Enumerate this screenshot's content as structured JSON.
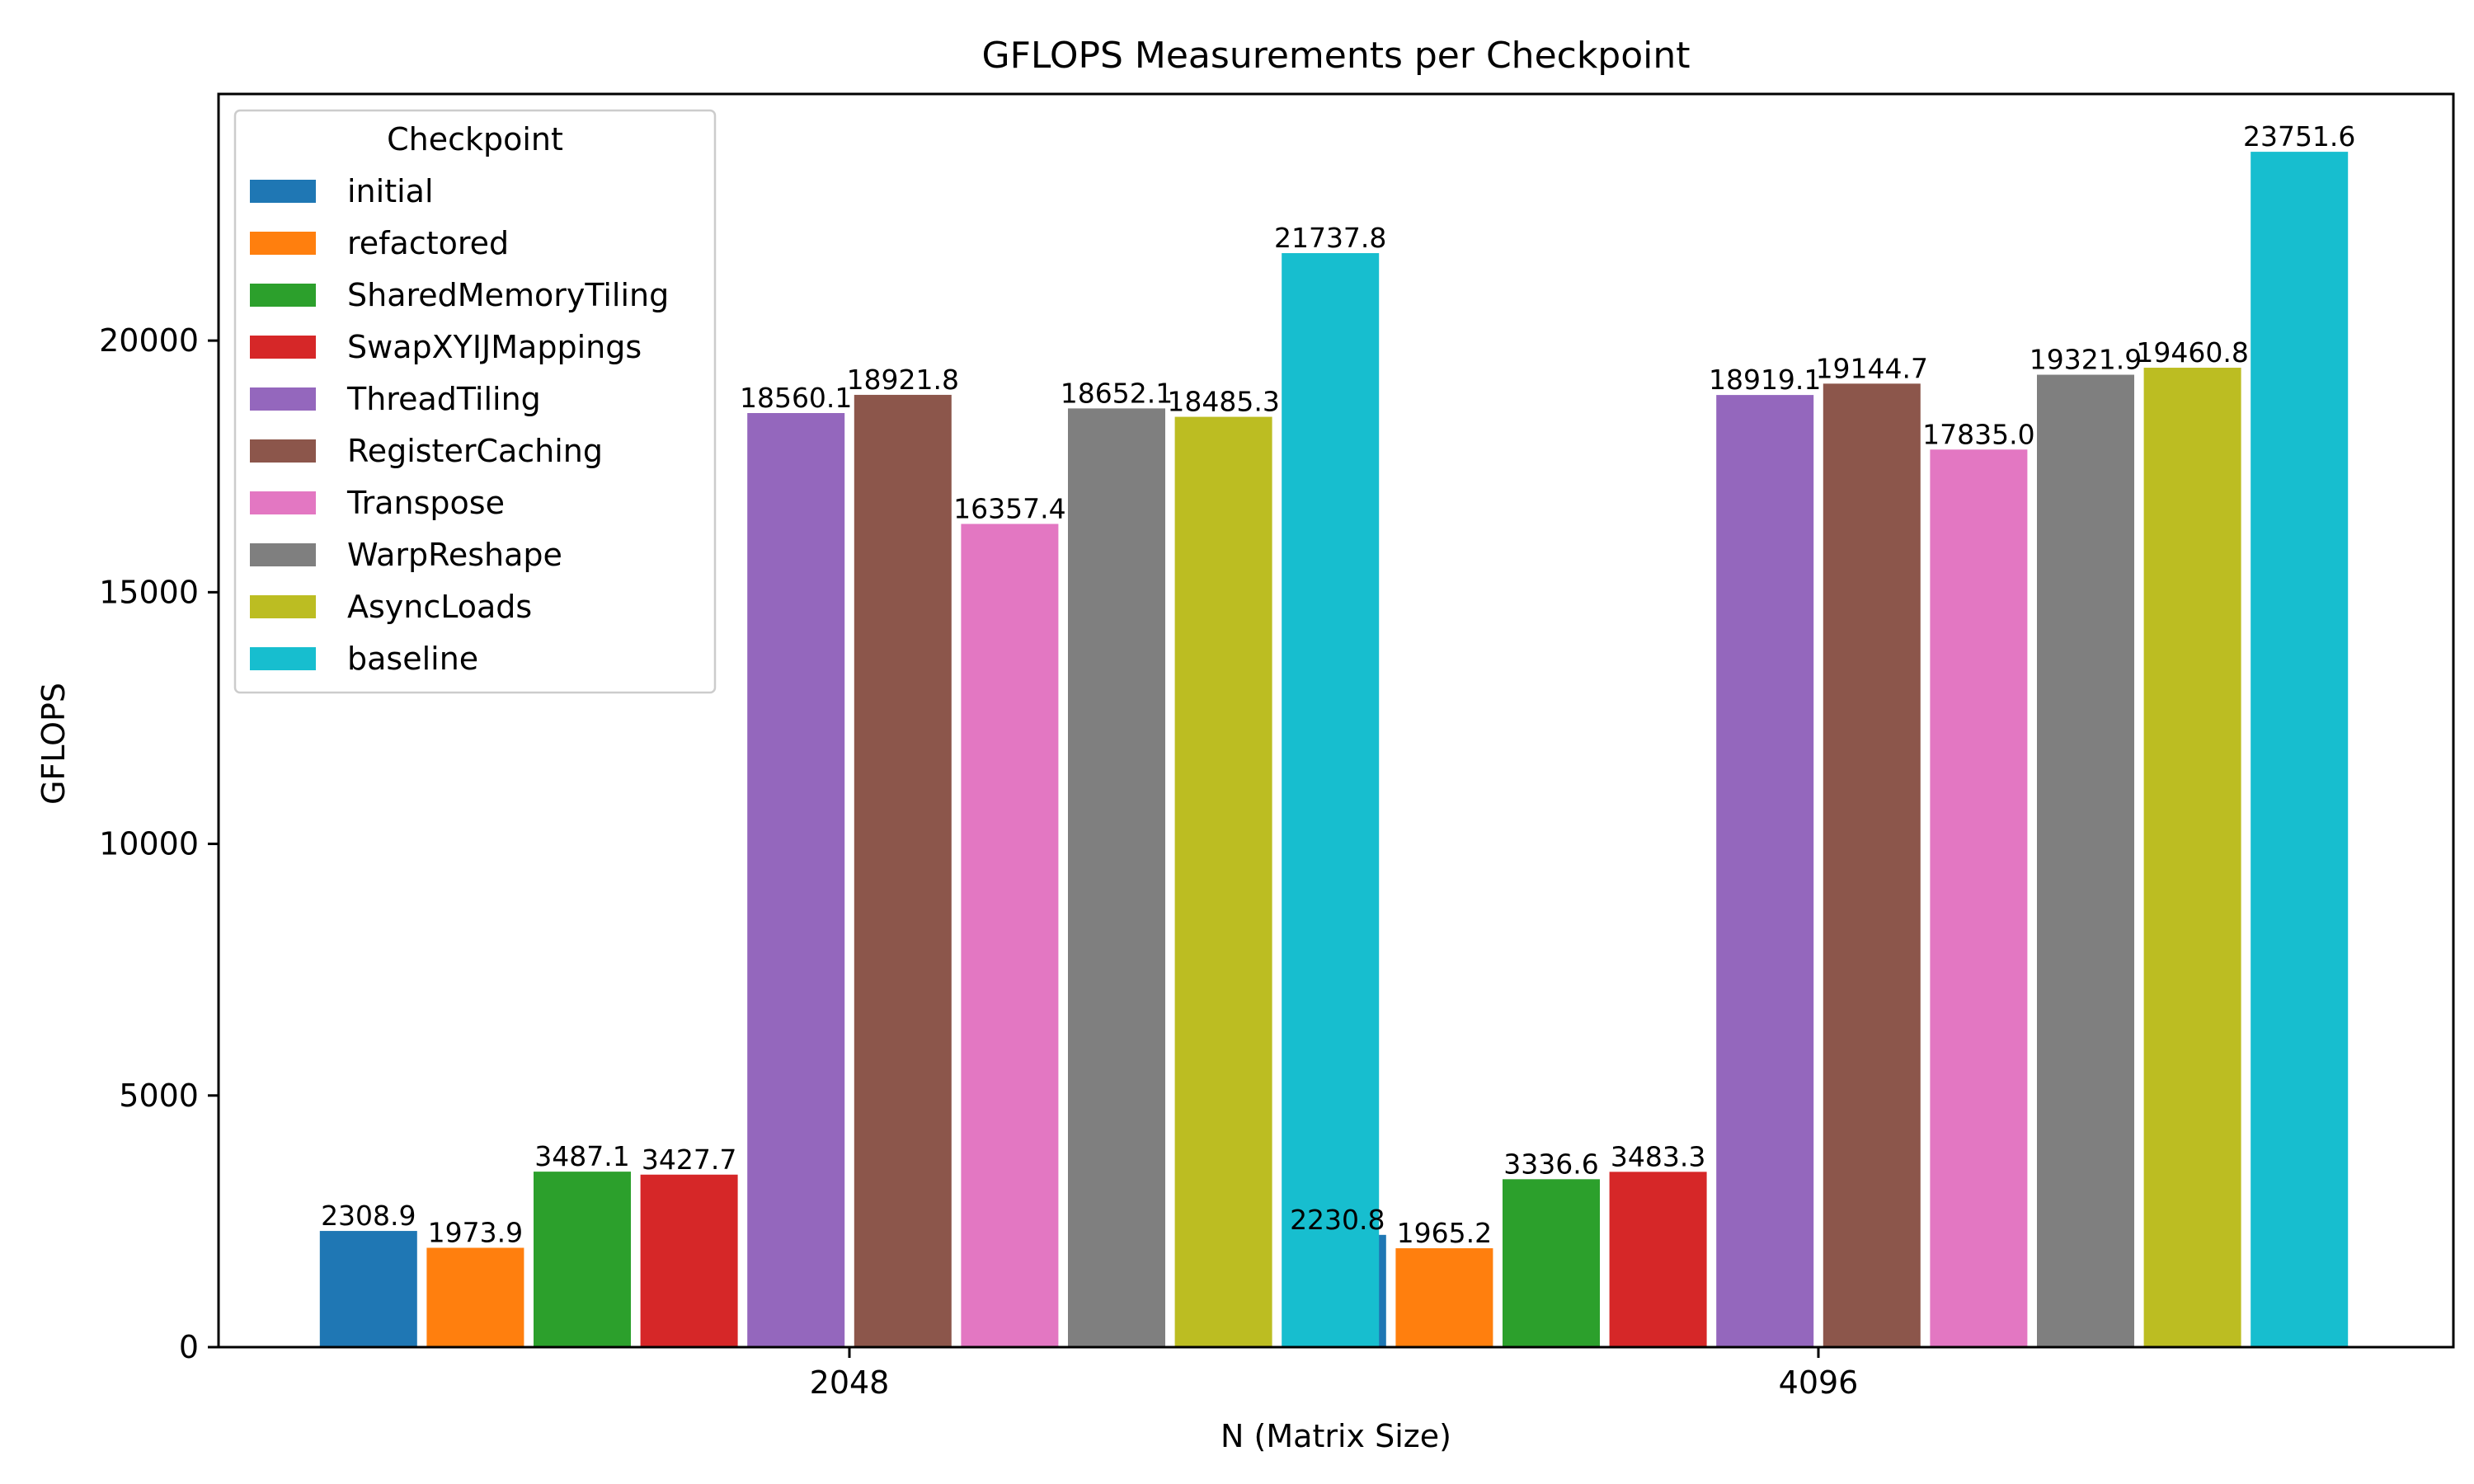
{
  "chart_data": {
    "type": "bar",
    "title": "GFLOPS Measurements per Checkpoint",
    "xlabel": "N (Matrix Size)",
    "ylabel": "GFLOPS",
    "categories": [
      "2048",
      "4096"
    ],
    "ylim": [
      0,
      24900
    ],
    "yticks": [
      0,
      5000,
      10000,
      15000,
      20000
    ],
    "grid": false,
    "legend": {
      "title": "Checkpoint",
      "placement": "top-left"
    },
    "series": [
      {
        "name": "initial",
        "color": "#1f77b4",
        "values": [
          2308.9,
          2230.8
        ],
        "labels": [
          "2308.9",
          "2230.8"
        ]
      },
      {
        "name": "refactored",
        "color": "#ff7f0e",
        "values": [
          1973.9,
          1965.2
        ],
        "labels": [
          "1973.9",
          "1965.2"
        ]
      },
      {
        "name": "SharedMemoryTiling",
        "color": "#2ca02c",
        "values": [
          3487.1,
          3336.6
        ],
        "labels": [
          "3487.1",
          "3336.6"
        ]
      },
      {
        "name": "SwapXYIJMappings",
        "color": "#d62728",
        "values": [
          3427.7,
          3483.3
        ],
        "labels": [
          "3427.7",
          "3483.3"
        ]
      },
      {
        "name": "ThreadTiling",
        "color": "#9467bd",
        "values": [
          18560.1,
          18919.1
        ],
        "labels": [
          "18560.1",
          "18919.1"
        ]
      },
      {
        "name": "RegisterCaching",
        "color": "#8c564b",
        "values": [
          18921.8,
          19144.7
        ],
        "labels": [
          "18921.8",
          "19144.7"
        ]
      },
      {
        "name": "Transpose",
        "color": "#e377c2",
        "values": [
          16357.4,
          17835.0
        ],
        "labels": [
          "16357.4",
          "17835.0"
        ]
      },
      {
        "name": "WarpReshape",
        "color": "#7f7f7f",
        "values": [
          18652.1,
          19321.9
        ],
        "labels": [
          "18652.1",
          "19321.9"
        ]
      },
      {
        "name": "AsyncLoads",
        "color": "#bcbd22",
        "values": [
          18485.3,
          19460.8
        ],
        "labels": [
          "18485.3",
          "19460.8"
        ]
      },
      {
        "name": "baseline",
        "color": "#17becf",
        "values": [
          21737.8,
          23751.6
        ],
        "labels": [
          "21737.8",
          "23751.6"
        ]
      }
    ]
  }
}
